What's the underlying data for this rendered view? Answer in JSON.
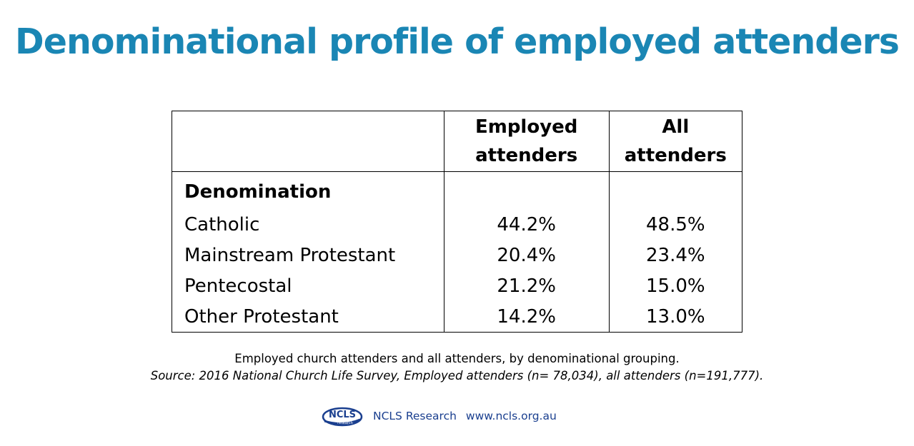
{
  "title": "Denominational profile of employed attenders",
  "chart_data": {
    "type": "table",
    "columns": [
      "",
      "Employed attenders",
      "All attenders"
    ],
    "group_label": "Denomination",
    "rows": [
      {
        "label": "Catholic",
        "employed": "44.2%",
        "all": "48.5%"
      },
      {
        "label": "Mainstream Protestant",
        "employed": "20.4%",
        "all": "23.4%"
      },
      {
        "label": "Pentecostal",
        "employed": "21.2%",
        "all": "15.0%"
      },
      {
        "label": "Other Protestant",
        "employed": "14.2%",
        "all": "13.0%"
      }
    ]
  },
  "caption": {
    "line1": "Employed church attenders and all attenders, by denominational grouping.",
    "source": "Source: 2016 National Church Life Survey, Employed attenders (n= 78,034), all attenders (n=191,777)."
  },
  "footer": {
    "logo_text": "NCLS",
    "logo_subtext": "research",
    "org": "NCLS Research",
    "url": "www.ncls.org.au"
  },
  "colors": {
    "title": "#1a86b4",
    "logo": "#1a3f8f"
  }
}
